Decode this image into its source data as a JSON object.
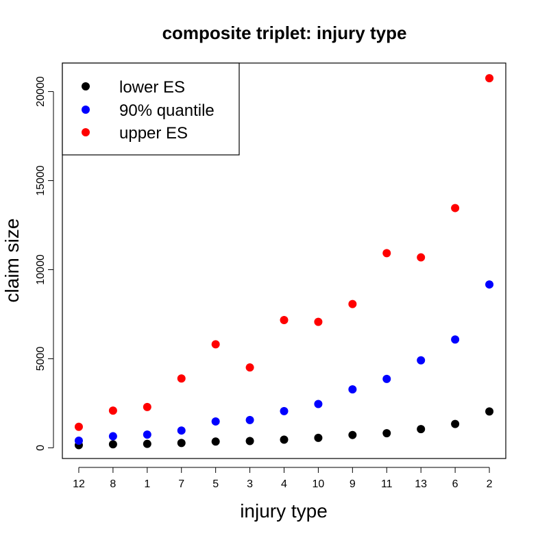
{
  "chart_data": {
    "type": "scatter",
    "title": "composite triplet: injury type",
    "xlabel": "injury type",
    "ylabel": "claim size",
    "categories": [
      "12",
      "8",
      "1",
      "7",
      "5",
      "3",
      "4",
      "10",
      "9",
      "11",
      "13",
      "6",
      "2"
    ],
    "ylim": [
      -600,
      21600
    ],
    "yticks": [
      0,
      5000,
      10000,
      15000,
      20000
    ],
    "grid": false,
    "legend_position": "top-left",
    "series": [
      {
        "name": "lower ES",
        "color": "#000000",
        "values": [
          150,
          200,
          220,
          270,
          350,
          380,
          460,
          560,
          720,
          820,
          1050,
          1340,
          2040
        ]
      },
      {
        "name": "90% quantile",
        "color": "#0000ff",
        "values": [
          400,
          650,
          740,
          970,
          1480,
          1560,
          2060,
          2460,
          3280,
          3870,
          4910,
          6080,
          9170
        ]
      },
      {
        "name": "upper ES",
        "color": "#ff0000",
        "values": [
          1180,
          2090,
          2290,
          3890,
          5810,
          4510,
          7170,
          7070,
          8070,
          10930,
          10690,
          13460,
          20750
        ]
      }
    ]
  }
}
